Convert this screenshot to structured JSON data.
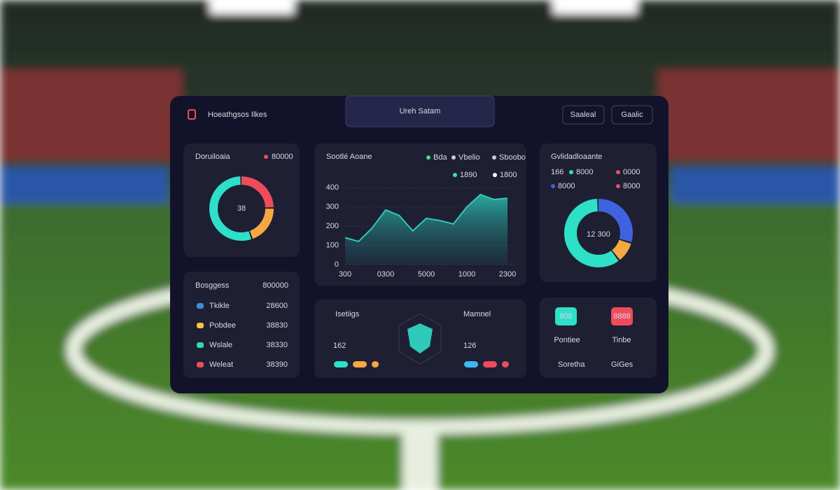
{
  "header": {
    "brand": "Hoeathgsos Ilkes",
    "title": "Ureh Satam",
    "buttons": [
      "Saaleal",
      "Gaalic"
    ]
  },
  "score_card": {
    "title": "Doruiloaia",
    "legend": "80000",
    "center": 38,
    "segments": [
      {
        "color": "#ef4b5b",
        "value": 25
      },
      {
        "color": "#f5a742",
        "value": 20
      },
      {
        "color": "#2ee0c7",
        "value": 55
      }
    ]
  },
  "list": {
    "title": "Bosggess",
    "note": "800000",
    "rows": [
      {
        "label": "Tkikle",
        "value": "28600",
        "color": "#3b8fd9",
        "value_color": "#f5a742"
      },
      {
        "label": "Pobdee",
        "value": "38830",
        "color": "#f5c542",
        "value_color": "#c9cbd6"
      },
      {
        "label": "Wslale",
        "value": "38330",
        "color": "#2ee0a7",
        "value_color": "#c9cbd6"
      },
      {
        "label": "Weleat",
        "value": "38390",
        "color": "#ef4b5b",
        "value_color": "#c9cbd6"
      }
    ]
  },
  "chart_data": {
    "type": "area",
    "title": "Sootlé Aoane",
    "legend_items": [
      {
        "label": "Bda",
        "color": "#3ee08a"
      },
      {
        "label": "Vbelio",
        "color": "#c9cbd6"
      },
      {
        "label": "Sboobo",
        "color": "#c9cbd6"
      },
      {
        "label": "1890",
        "color": "#2ee0c7"
      },
      {
        "label": "1800",
        "color": "#ffffff"
      }
    ],
    "categories": [
      "300",
      null,
      null,
      "0300",
      null,
      null,
      "5000",
      null,
      null,
      "1000",
      null,
      null,
      "2300"
    ],
    "values": [
      140,
      120,
      190,
      284,
      255,
      175,
      240,
      229,
      211,
      300,
      364,
      338,
      345
    ],
    "color": "#2ec9b8",
    "ylim": [
      0,
      400
    ],
    "yticks": [
      0,
      100,
      200,
      300,
      400
    ],
    "grid": true
  },
  "stats": [
    {
      "title": "Isetiigs",
      "value": 162,
      "pills": [
        "#2ee0c7",
        "#f5a742",
        "#f5a742"
      ]
    },
    {
      "title": "Mamnel",
      "value": 126,
      "pills": [
        "#3bb8f5",
        "#ef4b5b",
        "#ef4b5b"
      ]
    }
  ],
  "team_card": {
    "title": "Gvlidadloaante",
    "value": 166,
    "legend": [
      "8000",
      "8000",
      "0000",
      "8000"
    ],
    "center": "12 300",
    "segments": [
      {
        "color": "#3f63e0",
        "value": 30
      },
      {
        "color": "#f5a742",
        "value": 10
      },
      {
        "color": "#2ee0c7",
        "value": 60
      }
    ]
  },
  "actions": {
    "buttons": [
      {
        "label": "808",
        "color": "#2ee0c7"
      },
      {
        "label": "8888",
        "color": "#ef4b5b"
      }
    ],
    "labels": [
      "Pontiee",
      "Tinbe"
    ],
    "links": [
      "Soretha",
      "GiGes"
    ]
  }
}
